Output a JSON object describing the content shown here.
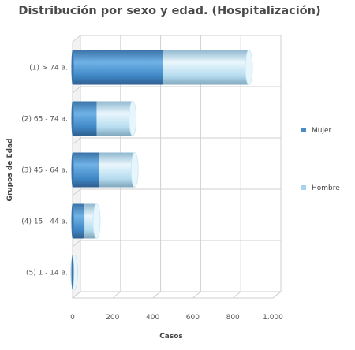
{
  "chart_data": {
    "type": "bar",
    "orientation": "horizontal",
    "stacked": true,
    "three_d": true,
    "title": "Distribución por sexo y edad. (Hospitalización)",
    "xlabel": "Casos",
    "ylabel": "Grupos de Edad",
    "categories": [
      "(1) > 74 a.",
      "(2) 65 - 74 a.",
      "(3) 45 - 64 a.",
      "(4) 15 - 44 a.",
      "(5) 1 - 14 a."
    ],
    "series": [
      {
        "name": "Mujer",
        "values": [
          450,
          120,
          130,
          60,
          5
        ],
        "color": "#4a8cc7"
      },
      {
        "name": "Hombre",
        "values": [
          430,
          180,
          180,
          60,
          3
        ],
        "color": "#a9d3ec"
      }
    ],
    "xlim": [
      0,
      1000
    ],
    "xticks": [
      "0",
      "200",
      "400",
      "600",
      "800",
      "1.000"
    ],
    "grid": true,
    "legend_position": "right"
  }
}
